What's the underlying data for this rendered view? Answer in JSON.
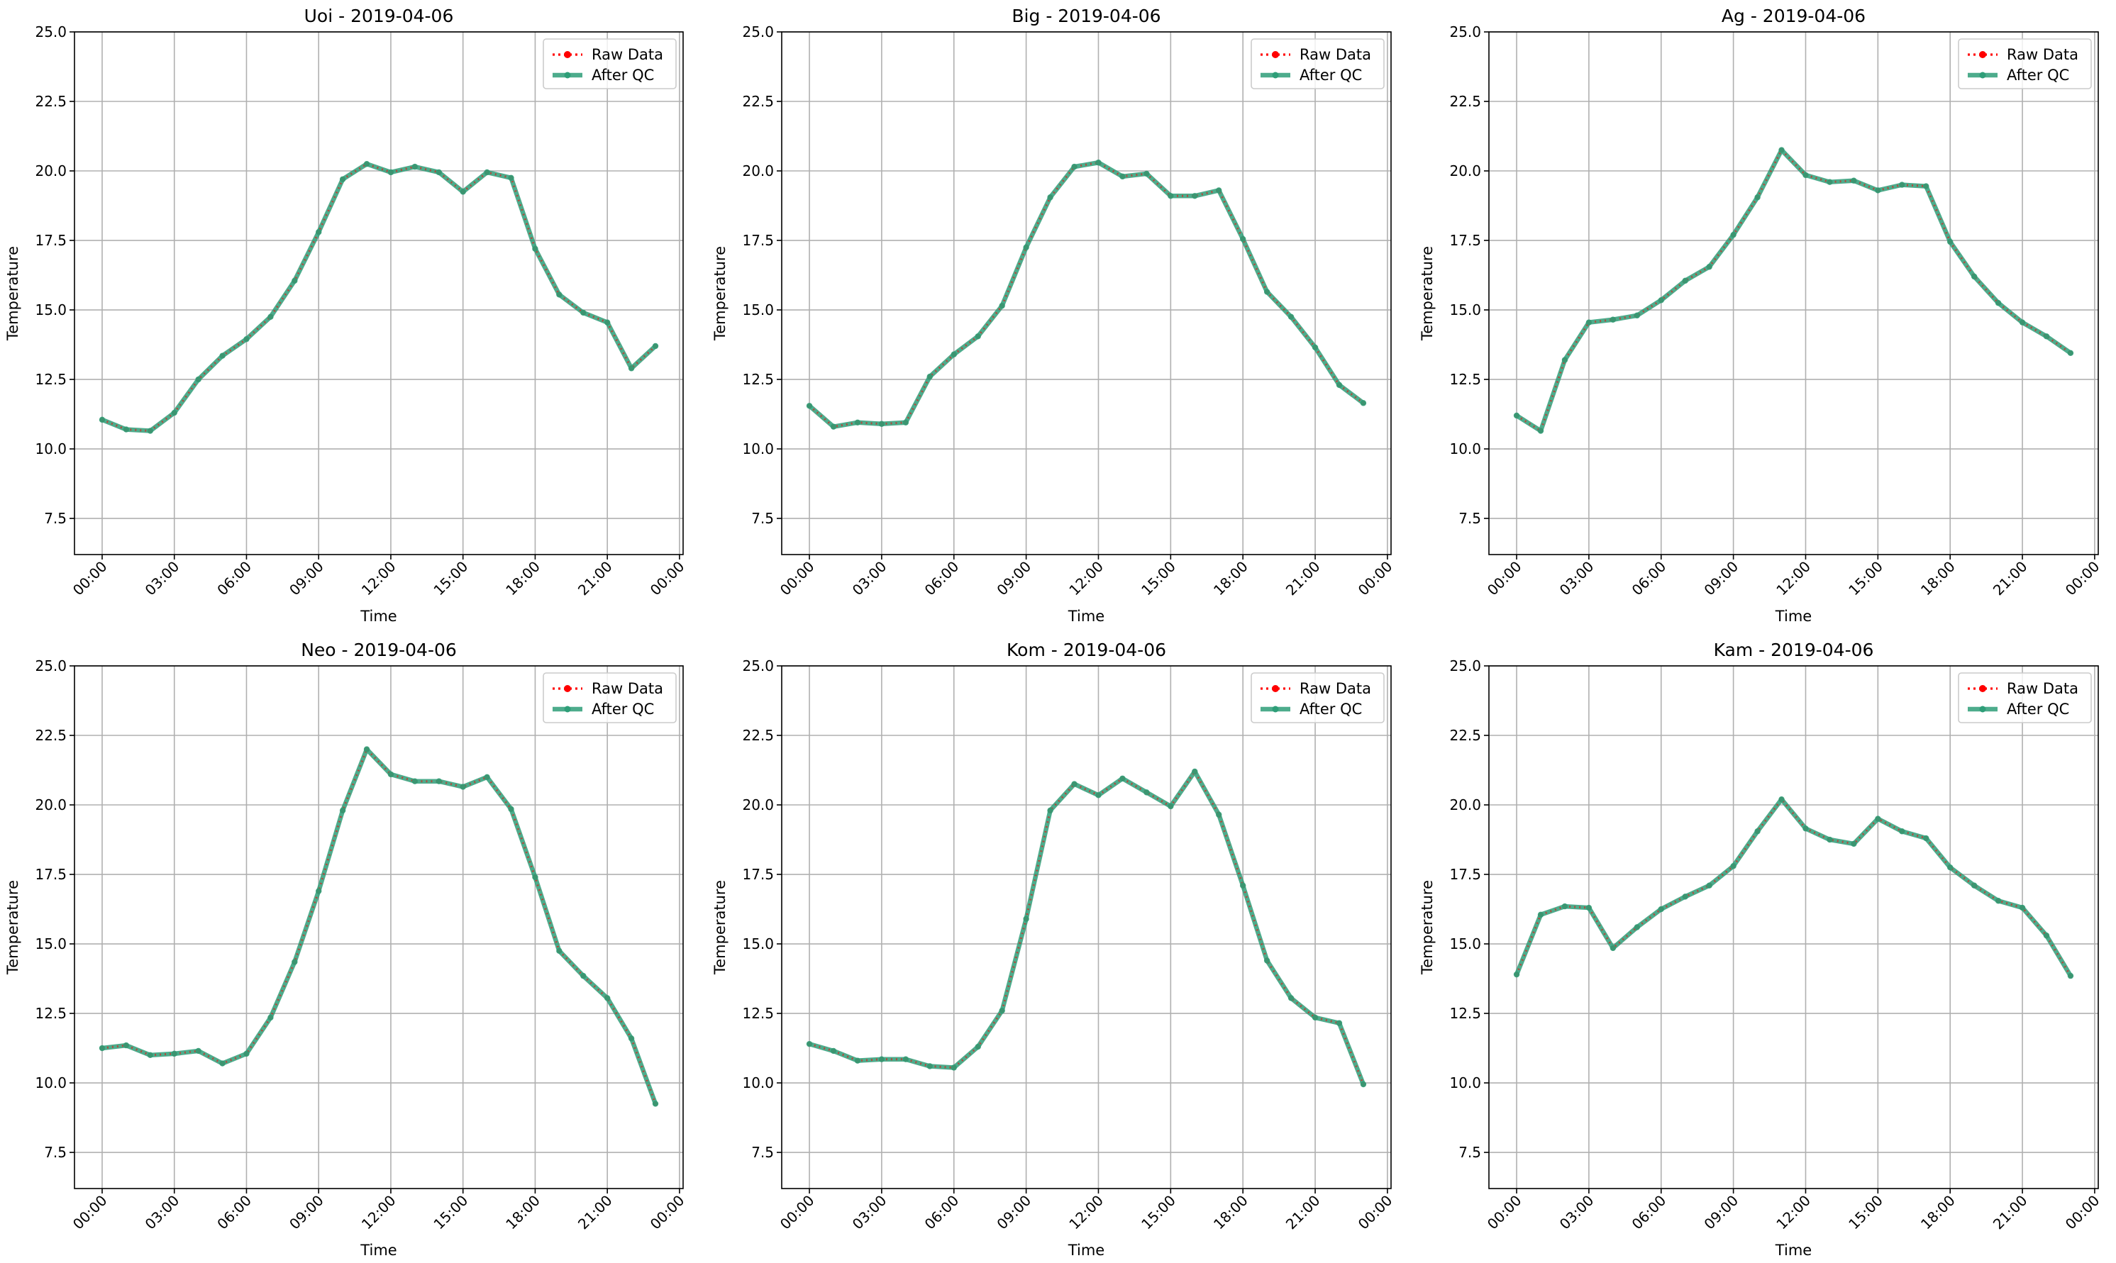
{
  "chart_data": [
    {
      "type": "line",
      "title": "Uoi - 2019-04-06",
      "xlabel": "Time",
      "ylabel": "Temperature",
      "ylim": [
        6.2,
        25.0
      ],
      "yticks": [
        7.5,
        10.0,
        12.5,
        15.0,
        17.5,
        20.0,
        22.5,
        25.0
      ],
      "ytick_labels": [
        "7.5",
        "10.0",
        "12.5",
        "15.0",
        "17.5",
        "20.0",
        "22.5",
        "25.0"
      ],
      "xticks": [
        0,
        3,
        6,
        9,
        12,
        15,
        18,
        21,
        24
      ],
      "xtick_labels": [
        "00:00",
        "03:00",
        "06:00",
        "09:00",
        "12:00",
        "15:00",
        "18:00",
        "21:00",
        "00:00"
      ],
      "xlim": [
        -1.15,
        24.15
      ],
      "grid": true,
      "legend": "top-right",
      "x": [
        0,
        1,
        2,
        3,
        4,
        5,
        6,
        7,
        8,
        9,
        10,
        11,
        12,
        13,
        14,
        15,
        16,
        17,
        18,
        19,
        20,
        21,
        22,
        23
      ],
      "series": [
        {
          "name": "Raw Data",
          "values": [
            11.05,
            10.7,
            10.65,
            11.3,
            12.5,
            13.35,
            13.95,
            14.75,
            16.05,
            17.8,
            19.7,
            20.25,
            19.95,
            20.15,
            19.95,
            19.25,
            19.95,
            19.75,
            17.2,
            15.55,
            14.9,
            14.55,
            12.9,
            13.7
          ]
        },
        {
          "name": "After QC",
          "values": [
            11.05,
            10.7,
            10.65,
            11.3,
            12.5,
            13.35,
            13.95,
            14.75,
            16.05,
            17.8,
            19.7,
            20.25,
            19.95,
            20.15,
            19.95,
            19.25,
            19.95,
            19.75,
            17.2,
            15.55,
            14.9,
            14.55,
            12.9,
            13.7
          ]
        }
      ]
    },
    {
      "type": "line",
      "title": "Big - 2019-04-06",
      "xlabel": "Time",
      "ylabel": "Temperature",
      "ylim": [
        6.2,
        25.0
      ],
      "yticks": [
        7.5,
        10.0,
        12.5,
        15.0,
        17.5,
        20.0,
        22.5,
        25.0
      ],
      "ytick_labels": [
        "7.5",
        "10.0",
        "12.5",
        "15.0",
        "17.5",
        "20.0",
        "22.5",
        "25.0"
      ],
      "xticks": [
        0,
        3,
        6,
        9,
        12,
        15,
        18,
        21,
        24
      ],
      "xtick_labels": [
        "00:00",
        "03:00",
        "06:00",
        "09:00",
        "12:00",
        "15:00",
        "18:00",
        "21:00",
        "00:00"
      ],
      "xlim": [
        -1.15,
        24.15
      ],
      "grid": true,
      "legend": "top-right",
      "x": [
        0,
        1,
        2,
        3,
        4,
        5,
        6,
        7,
        8,
        9,
        10,
        11,
        12,
        13,
        14,
        15,
        16,
        17,
        18,
        19,
        20,
        21,
        22,
        23
      ],
      "series": [
        {
          "name": "Raw Data",
          "values": [
            11.55,
            10.8,
            10.95,
            10.9,
            10.95,
            12.6,
            13.4,
            14.05,
            15.15,
            17.25,
            19.05,
            20.15,
            20.3,
            19.8,
            19.9,
            19.1,
            19.1,
            19.3,
            17.55,
            15.65,
            14.75,
            13.65,
            12.3,
            11.65
          ]
        },
        {
          "name": "After QC",
          "values": [
            11.55,
            10.8,
            10.95,
            10.9,
            10.95,
            12.6,
            13.4,
            14.05,
            15.15,
            17.25,
            19.05,
            20.15,
            20.3,
            19.8,
            19.9,
            19.1,
            19.1,
            19.3,
            17.55,
            15.65,
            14.75,
            13.65,
            12.3,
            11.65
          ]
        }
      ]
    },
    {
      "type": "line",
      "title": "Ag - 2019-04-06",
      "xlabel": "Time",
      "ylabel": "Temperature",
      "ylim": [
        6.2,
        25.0
      ],
      "yticks": [
        7.5,
        10.0,
        12.5,
        15.0,
        17.5,
        20.0,
        22.5,
        25.0
      ],
      "ytick_labels": [
        "7.5",
        "10.0",
        "12.5",
        "15.0",
        "17.5",
        "20.0",
        "22.5",
        "25.0"
      ],
      "xticks": [
        0,
        3,
        6,
        9,
        12,
        15,
        18,
        21,
        24
      ],
      "xtick_labels": [
        "00:00",
        "03:00",
        "06:00",
        "09:00",
        "12:00",
        "15:00",
        "18:00",
        "21:00",
        "00:00"
      ],
      "xlim": [
        -1.15,
        24.15
      ],
      "grid": true,
      "legend": "top-right",
      "x": [
        0,
        1,
        2,
        3,
        4,
        5,
        6,
        7,
        8,
        9,
        10,
        11,
        12,
        13,
        14,
        15,
        16,
        17,
        18,
        19,
        20,
        21,
        22,
        23
      ],
      "series": [
        {
          "name": "Raw Data",
          "values": [
            11.2,
            10.65,
            13.2,
            14.55,
            14.65,
            14.8,
            15.35,
            16.05,
            16.55,
            17.7,
            19.05,
            20.75,
            19.85,
            19.6,
            19.65,
            19.3,
            19.5,
            19.45,
            17.45,
            16.2,
            15.25,
            14.55,
            14.05,
            13.45
          ]
        },
        {
          "name": "After QC",
          "values": [
            11.2,
            10.65,
            13.2,
            14.55,
            14.65,
            14.8,
            15.35,
            16.05,
            16.55,
            17.7,
            19.05,
            20.75,
            19.85,
            19.6,
            19.65,
            19.3,
            19.5,
            19.45,
            17.45,
            16.2,
            15.25,
            14.55,
            14.05,
            13.45
          ]
        }
      ]
    },
    {
      "type": "line",
      "title": "Neo - 2019-04-06",
      "xlabel": "Time",
      "ylabel": "Temperature",
      "ylim": [
        6.2,
        25.0
      ],
      "yticks": [
        7.5,
        10.0,
        12.5,
        15.0,
        17.5,
        20.0,
        22.5,
        25.0
      ],
      "ytick_labels": [
        "7.5",
        "10.0",
        "12.5",
        "15.0",
        "17.5",
        "20.0",
        "22.5",
        "25.0"
      ],
      "xticks": [
        0,
        3,
        6,
        9,
        12,
        15,
        18,
        21,
        24
      ],
      "xtick_labels": [
        "00:00",
        "03:00",
        "06:00",
        "09:00",
        "12:00",
        "15:00",
        "18:00",
        "21:00",
        "00:00"
      ],
      "xlim": [
        -1.15,
        24.15
      ],
      "grid": true,
      "legend": "top-right",
      "x": [
        0,
        1,
        2,
        3,
        4,
        5,
        6,
        7,
        8,
        9,
        10,
        11,
        12,
        13,
        14,
        15,
        16,
        17,
        18,
        19,
        20,
        21,
        22,
        23
      ],
      "series": [
        {
          "name": "Raw Data",
          "values": [
            11.25,
            11.35,
            11.0,
            11.05,
            11.15,
            10.7,
            11.05,
            12.35,
            14.35,
            16.9,
            19.8,
            22.0,
            21.1,
            20.85,
            20.85,
            20.65,
            21.0,
            19.85,
            17.4,
            14.75,
            13.85,
            13.05,
            11.6,
            9.25
          ]
        },
        {
          "name": "After QC",
          "values": [
            11.25,
            11.35,
            11.0,
            11.05,
            11.15,
            10.7,
            11.05,
            12.35,
            14.35,
            16.9,
            19.8,
            22.0,
            21.1,
            20.85,
            20.85,
            20.65,
            21.0,
            19.85,
            17.4,
            14.75,
            13.85,
            13.05,
            11.6,
            9.25
          ]
        }
      ]
    },
    {
      "type": "line",
      "title": "Kom - 2019-04-06",
      "xlabel": "Time",
      "ylabel": "Temperature",
      "ylim": [
        6.2,
        25.0
      ],
      "yticks": [
        7.5,
        10.0,
        12.5,
        15.0,
        17.5,
        20.0,
        22.5,
        25.0
      ],
      "ytick_labels": [
        "7.5",
        "10.0",
        "12.5",
        "15.0",
        "17.5",
        "20.0",
        "22.5",
        "25.0"
      ],
      "xticks": [
        0,
        3,
        6,
        9,
        12,
        15,
        18,
        21,
        24
      ],
      "xtick_labels": [
        "00:00",
        "03:00",
        "06:00",
        "09:00",
        "12:00",
        "15:00",
        "18:00",
        "21:00",
        "00:00"
      ],
      "xlim": [
        -1.15,
        24.15
      ],
      "grid": true,
      "legend": "top-right",
      "x": [
        0,
        1,
        2,
        3,
        4,
        5,
        6,
        7,
        8,
        9,
        10,
        11,
        12,
        13,
        14,
        15,
        16,
        17,
        18,
        19,
        20,
        21,
        22,
        23
      ],
      "series": [
        {
          "name": "Raw Data",
          "values": [
            11.4,
            11.15,
            10.8,
            10.85,
            10.85,
            10.6,
            10.55,
            11.3,
            12.6,
            15.9,
            19.8,
            20.75,
            20.35,
            20.95,
            20.45,
            19.95,
            21.2,
            19.65,
            17.1,
            14.4,
            13.05,
            12.35,
            12.15,
            9.95
          ]
        },
        {
          "name": "After QC",
          "values": [
            11.4,
            11.15,
            10.8,
            10.85,
            10.85,
            10.6,
            10.55,
            11.3,
            12.6,
            15.9,
            19.8,
            20.75,
            20.35,
            20.95,
            20.45,
            19.95,
            21.2,
            19.65,
            17.1,
            14.4,
            13.05,
            12.35,
            12.15,
            9.95
          ]
        }
      ]
    },
    {
      "type": "line",
      "title": "Kam - 2019-04-06",
      "xlabel": "Time",
      "ylabel": "Temperature",
      "ylim": [
        6.2,
        25.0
      ],
      "yticks": [
        7.5,
        10.0,
        12.5,
        15.0,
        17.5,
        20.0,
        22.5,
        25.0
      ],
      "ytick_labels": [
        "7.5",
        "10.0",
        "12.5",
        "15.0",
        "17.5",
        "20.0",
        "22.5",
        "25.0"
      ],
      "xticks": [
        0,
        3,
        6,
        9,
        12,
        15,
        18,
        21,
        24
      ],
      "xtick_labels": [
        "00:00",
        "03:00",
        "06:00",
        "09:00",
        "12:00",
        "15:00",
        "18:00",
        "21:00",
        "00:00"
      ],
      "xlim": [
        -1.15,
        24.15
      ],
      "grid": true,
      "legend": "top-right",
      "x": [
        0,
        1,
        2,
        3,
        4,
        5,
        6,
        7,
        8,
        9,
        10,
        11,
        12,
        13,
        14,
        15,
        16,
        17,
        18,
        19,
        20,
        21,
        22,
        23
      ],
      "series": [
        {
          "name": "Raw Data",
          "values": [
            13.9,
            16.05,
            16.35,
            16.3,
            14.85,
            15.6,
            16.25,
            16.7,
            17.1,
            17.8,
            19.05,
            20.2,
            19.15,
            18.75,
            18.6,
            19.5,
            19.05,
            18.8,
            17.75,
            17.1,
            16.55,
            16.3,
            15.3,
            13.85
          ]
        },
        {
          "name": "After QC",
          "values": [
            13.9,
            16.05,
            16.35,
            16.3,
            14.85,
            15.6,
            16.25,
            16.7,
            17.1,
            17.8,
            19.05,
            20.2,
            19.15,
            18.75,
            18.6,
            19.5,
            19.05,
            18.8,
            17.75,
            17.1,
            16.55,
            16.3,
            15.3,
            13.85
          ]
        }
      ]
    }
  ],
  "colors": {
    "raw_data": "#ff0000",
    "after_qc": "#2e9e78",
    "grid": "#b0b0b0",
    "legend_border": "#cccccc"
  }
}
